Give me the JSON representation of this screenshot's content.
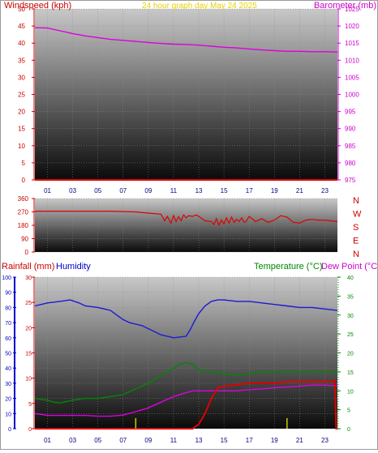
{
  "chart_data": [
    {
      "type": "line",
      "title": "24 hour graph day   May 24 2025",
      "y_left": {
        "label": "Windspeed (kph)",
        "ticks": [
          "0",
          "5",
          "10",
          "15",
          "20",
          "25",
          "30",
          "35",
          "40",
          "45",
          "50"
        ],
        "range": [
          0,
          50
        ]
      },
      "y_right": {
        "label": "Barometer (mb)",
        "ticks": [
          "975",
          "980",
          "985",
          "990",
          "995",
          "1000",
          "1005",
          "1010",
          "1015",
          "1020",
          "1025"
        ],
        "range": [
          975,
          1025
        ]
      },
      "x_ticks": [
        "01",
        "03",
        "05",
        "07",
        "09",
        "11",
        "13",
        "15",
        "17",
        "19",
        "21",
        "23"
      ],
      "x_range": [
        0,
        24
      ],
      "colors": {
        "wind": "#e00000",
        "barometer": "#dd00dd",
        "left_axis": "#cc0000",
        "right_axis": "#cc00cc",
        "title": "#e6d200"
      },
      "series": [
        {
          "name": "Barometer",
          "axis": "right",
          "x": [
            0,
            1,
            2,
            3,
            4,
            5,
            6,
            7,
            8,
            9,
            10,
            11,
            12,
            13,
            14,
            15,
            16,
            17,
            18,
            19,
            20,
            21,
            22,
            23,
            24
          ],
          "values": [
            1019.5,
            1019.4,
            1018.6,
            1017.8,
            1017.1,
            1016.6,
            1016.1,
            1015.8,
            1015.5,
            1015.2,
            1014.9,
            1014.7,
            1014.6,
            1014.4,
            1014.1,
            1013.8,
            1013.6,
            1013.3,
            1013.0,
            1012.8,
            1012.6,
            1012.6,
            1012.5,
            1012.5,
            1012.4
          ]
        },
        {
          "name": "Windspeed",
          "axis": "left",
          "x": [
            0,
            24
          ],
          "values": [
            0,
            0
          ]
        }
      ]
    },
    {
      "type": "line",
      "title": "",
      "y_left": {
        "ticks": [
          "360",
          "270",
          "180",
          "90",
          "0"
        ],
        "range": [
          0,
          360
        ]
      },
      "y_right_labels": [
        "N",
        "W",
        "S",
        "E",
        "N"
      ],
      "x_range": [
        0,
        24
      ],
      "colors": {
        "direction": "#e00000",
        "left_axis": "#cc0000",
        "compass": "#cc0000"
      },
      "series": [
        {
          "name": "Wind direction",
          "x": [
            0,
            6,
            8,
            9,
            10,
            10.3,
            10.5,
            10.8,
            11,
            11.2,
            11.4,
            11.6,
            11.8,
            12,
            12.2,
            12.5,
            12.8,
            13,
            13.5,
            14,
            14.2,
            14.4,
            14.6,
            14.8,
            15,
            15.2,
            15.4,
            15.6,
            15.8,
            16,
            16.2,
            16.4,
            16.6,
            16.8,
            17,
            17.5,
            18,
            18.5,
            19,
            19.5,
            20,
            20.5,
            21,
            21.5,
            22,
            22.5,
            23,
            24
          ],
          "values": [
            275,
            275,
            270,
            262,
            255,
            210,
            240,
            195,
            245,
            205,
            238,
            210,
            250,
            230,
            245,
            240,
            250,
            240,
            210,
            205,
            185,
            225,
            180,
            215,
            190,
            230,
            195,
            235,
            200,
            220,
            205,
            230,
            200,
            210,
            240,
            205,
            225,
            200,
            215,
            245,
            235,
            200,
            195,
            215,
            220,
            215,
            215,
            205
          ]
        }
      ]
    },
    {
      "type": "line",
      "title": "",
      "y_outer": {
        "label": "Rainfall (mm)",
        "ticks": [
          "0",
          "10",
          "20",
          "30",
          "40",
          "50",
          "60",
          "70",
          "80",
          "90",
          "100"
        ],
        "range": [
          0,
          100
        ]
      },
      "y_inner": {
        "label": "Humidity",
        "ticks": [
          "0",
          "5",
          "10",
          "15",
          "20",
          "25",
          "30"
        ],
        "range": [
          0,
          30
        ]
      },
      "y_right": {
        "label": "Temperature (°C)",
        "ticks": [
          "0",
          "5",
          "10",
          "15",
          "20",
          "25",
          "30",
          "35",
          "40"
        ],
        "range": [
          0,
          40
        ]
      },
      "y_right_label_2": "Dew Point (°C)",
      "x_ticks": [
        "01",
        "03",
        "05",
        "07",
        "09",
        "11",
        "13",
        "15",
        "17",
        "19",
        "21",
        "23"
      ],
      "x_range": [
        0,
        24
      ],
      "colors": {
        "humidity": "#1a1ad6",
        "temperature": "#008800",
        "dewpoint": "#dd00dd",
        "rain": "#e00000",
        "rain_rate": "#cccc00",
        "rainfall_axis": "#cc0000",
        "humidity_axis": "#0000cc",
        "temp_axis": "#008800",
        "dew_axis": "#cc00cc"
      },
      "series": [
        {
          "name": "Humidity",
          "axis": "outer",
          "x": [
            0,
            0.5,
            1,
            2,
            2.8,
            3.5,
            4,
            5,
            6,
            6.5,
            7,
            7.5,
            8,
            8.5,
            9,
            9.5,
            10,
            10.5,
            11,
            11.5,
            12,
            12.3,
            12.6,
            13,
            13.5,
            14,
            14.5,
            15,
            16,
            17,
            18,
            19,
            20,
            21,
            22,
            23,
            24
          ],
          "values": [
            81,
            82,
            83,
            84,
            85,
            83,
            81,
            80,
            78,
            75,
            72,
            70,
            69,
            68,
            66,
            64,
            62,
            61,
            60,
            60.5,
            61,
            65,
            70,
            76,
            81,
            84,
            85,
            85,
            84,
            84,
            83,
            82,
            81,
            80,
            80,
            79,
            78
          ]
        },
        {
          "name": "Temperature",
          "axis": "right",
          "x": [
            0,
            1,
            1.5,
            2,
            3,
            4,
            5,
            6,
            7,
            8,
            9,
            10,
            10.5,
            11,
            11.5,
            12,
            12.5,
            13,
            14,
            15,
            16,
            17,
            18,
            19,
            20,
            21,
            22,
            23,
            24
          ],
          "values": [
            8,
            7.5,
            7,
            6.8,
            7.5,
            8,
            8,
            8.5,
            9,
            10.5,
            12,
            14,
            15,
            16,
            17,
            17.5,
            17,
            15.5,
            15,
            14.5,
            14,
            14.5,
            15,
            15,
            15,
            15,
            15,
            15,
            15
          ]
        },
        {
          "name": "Dew Point",
          "axis": "right",
          "x": [
            0,
            1,
            2,
            3,
            4,
            5,
            6,
            7,
            8,
            9,
            10,
            11,
            12,
            12.5,
            13,
            14,
            15,
            16,
            17,
            18,
            19,
            20,
            21,
            22,
            23,
            24
          ],
          "values": [
            4,
            3.5,
            3.5,
            3.5,
            3.5,
            3.3,
            3.3,
            3.6,
            4.5,
            5.5,
            7,
            8.5,
            9.5,
            10,
            10,
            10,
            10,
            10,
            10.3,
            10.5,
            10.8,
            11,
            11.2,
            11.5,
            11.5,
            11.3
          ]
        },
        {
          "name": "Rainfall",
          "axis": "outer",
          "x": [
            0,
            12.5,
            13,
            13.5,
            14,
            14.5,
            15,
            16,
            17,
            18,
            19,
            20,
            21,
            22,
            23,
            23.8,
            23.9,
            24
          ],
          "values": [
            0,
            0,
            3,
            10,
            20,
            27,
            28,
            29,
            30,
            30,
            30,
            31,
            31,
            31,
            31,
            31.5,
            0,
            0
          ]
        },
        {
          "name": "Rain rate",
          "axis": "outer",
          "bars_x": [
            8,
            20
          ],
          "bars_values": [
            7,
            7
          ]
        }
      ]
    }
  ]
}
